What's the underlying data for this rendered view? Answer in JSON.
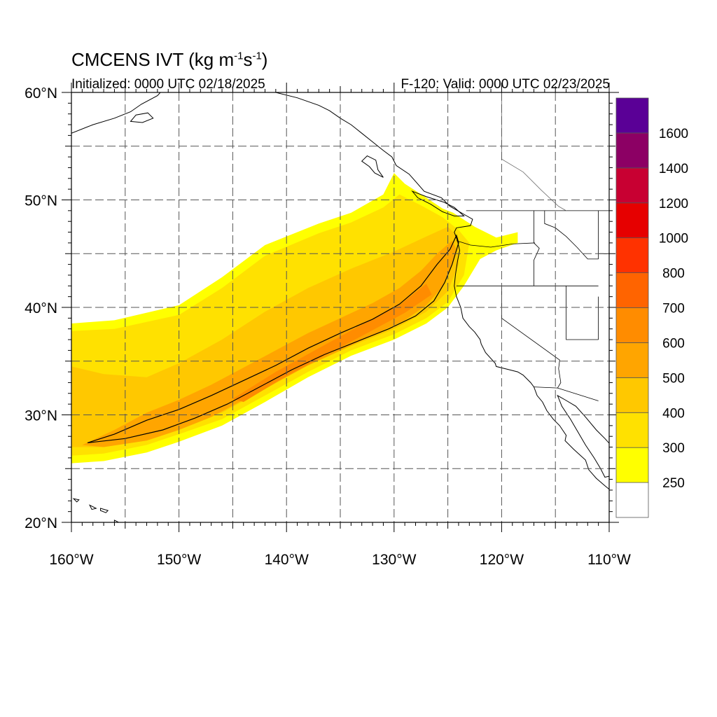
{
  "header": {
    "title_main": "CMCENS IVT (kg m",
    "title_exp1": "-1",
    "title_mid": "s",
    "title_exp2": "-1",
    "title_end": ")",
    "initialized": "Initialized: 0000 UTC 02/18/2025",
    "valid": "F-120: Valid: 0000 UTC 02/23/2025"
  },
  "map": {
    "projection": "cylindrical-equidistant",
    "lon_range": [
      -160,
      -110
    ],
    "lat_range": [
      20,
      60
    ],
    "grid": "dashed",
    "lat_labels": [
      "20°N",
      "30°N",
      "40°N",
      "50°N",
      "60°N"
    ],
    "lon_labels": [
      "160°W",
      "150°W",
      "140°W",
      "130°W",
      "120°W",
      "110°W"
    ]
  },
  "colorbar": {
    "labels": [
      "250",
      "300",
      "400",
      "500",
      "600",
      "700",
      "800",
      "1000",
      "1200",
      "1400",
      "1600"
    ],
    "colors": [
      "#ffffff",
      "#ffff00",
      "#ffe100",
      "#ffc800",
      "#ffa500",
      "#ff8c00",
      "#ff6400",
      "#ff3200",
      "#e60000",
      "#c80032",
      "#8c0064",
      "#5a0096"
    ]
  },
  "chart_data": {
    "type": "heatmap",
    "variable": "IVT",
    "units": "kg m-1 s-1",
    "levels": [
      250,
      300,
      400,
      500,
      600,
      700,
      800,
      1000,
      1200,
      1400,
      1600
    ],
    "plume_outer_300": [
      [
        -160,
        38.5
      ],
      [
        -156,
        38.8
      ],
      [
        -150,
        40.2
      ],
      [
        -146,
        42.8
      ],
      [
        -142,
        45.8
      ],
      [
        -137,
        47.8
      ],
      [
        -134,
        48.8
      ],
      [
        -131,
        50.5
      ],
      [
        -130,
        52.5
      ],
      [
        -129,
        51.5
      ],
      [
        -127,
        50.2
      ],
      [
        -125.5,
        49.2
      ],
      [
        -124.5,
        48.8
      ],
      [
        -122.5,
        47.5
      ],
      [
        -120.5,
        46.5
      ],
      [
        -118.5,
        47
      ],
      [
        -118.5,
        46
      ],
      [
        -120.5,
        45.3
      ],
      [
        -122,
        44.5
      ],
      [
        -123.5,
        42
      ],
      [
        -125,
        40
      ],
      [
        -127,
        38.5
      ],
      [
        -130,
        37
      ],
      [
        -134,
        35.5
      ],
      [
        -138,
        33.5
      ],
      [
        -142,
        31.2
      ],
      [
        -146,
        29
      ],
      [
        -150,
        27.5
      ],
      [
        -153,
        26.5
      ],
      [
        -157,
        25.7
      ],
      [
        -160,
        25.5
      ]
    ],
    "plume_600_contour": [
      [
        -158.5,
        27.4
      ],
      [
        -156,
        28.2
      ],
      [
        -153,
        29.5
      ],
      [
        -150,
        30.5
      ],
      [
        -147,
        31.8
      ],
      [
        -144,
        33.2
      ],
      [
        -141,
        34.6
      ],
      [
        -138,
        36.2
      ],
      [
        -135,
        37.6
      ],
      [
        -132,
        38.9
      ],
      [
        -129.5,
        40.3
      ],
      [
        -127.5,
        42
      ],
      [
        -126,
        44
      ],
      [
        -124.8,
        45.4
      ],
      [
        -124.2,
        46.7
      ],
      [
        -124,
        46
      ],
      [
        -124.6,
        44
      ],
      [
        -125.3,
        42.3
      ],
      [
        -126.3,
        40.6
      ],
      [
        -128,
        39.2
      ],
      [
        -130.5,
        38
      ],
      [
        -133.5,
        36.8
      ],
      [
        -136.5,
        35.6
      ],
      [
        -139.5,
        34.2
      ],
      [
        -142.5,
        32.6
      ],
      [
        -145.5,
        31
      ],
      [
        -148.5,
        29.7
      ],
      [
        -151.5,
        28.6
      ],
      [
        -155,
        27.8
      ],
      [
        -158.5,
        27.4
      ]
    ],
    "max_region_700": [
      [
        -145,
        31.5
      ],
      [
        -141,
        34
      ],
      [
        -137,
        36.2
      ],
      [
        -133,
        38.4
      ],
      [
        -129.5,
        40.2
      ],
      [
        -127,
        42.2
      ],
      [
        -126.5,
        41.2
      ],
      [
        -129,
        39.5
      ],
      [
        -132.5,
        37.6
      ],
      [
        -136.5,
        35.5
      ],
      [
        -140.5,
        33.3
      ],
      [
        -144,
        31.2
      ]
    ]
  }
}
